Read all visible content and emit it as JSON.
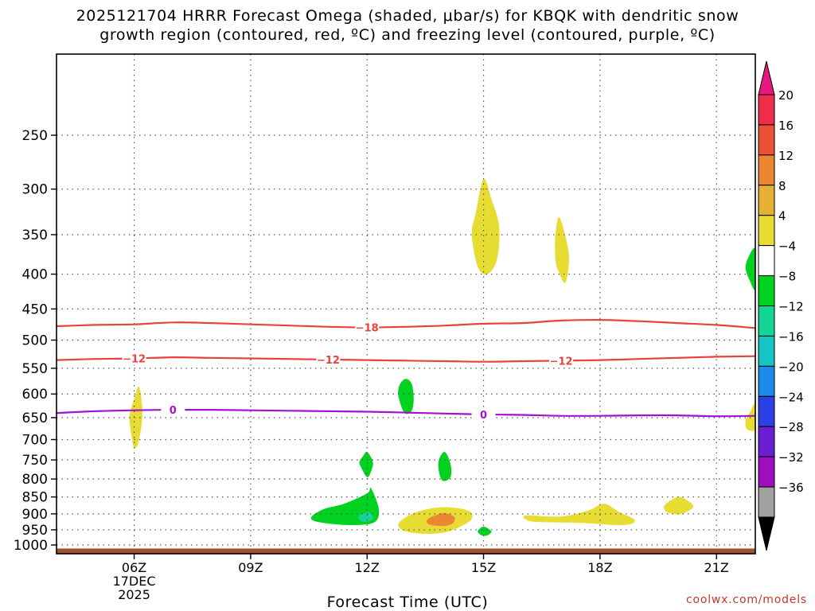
{
  "title_line1": "2025121704 HRRR Forecast Omega (shaded, μbar/s) for KBQK with dendritic snow",
  "title_line2": "growth region (contoured, red, ºC) and freezing level (contoured, purple, ºC)",
  "credit": "coolwx.com/models",
  "chart_data": {
    "type": "heatmap",
    "xlabel": "Forecast Time (UTC)",
    "x_ticks": [
      {
        "label": "06Z",
        "hour": 6,
        "sub": [
          "17DEC",
          "2025"
        ]
      },
      {
        "label": "09Z",
        "hour": 9,
        "sub": []
      },
      {
        "label": "12Z",
        "hour": 12,
        "sub": []
      },
      {
        "label": "15Z",
        "hour": 15,
        "sub": []
      },
      {
        "label": "18Z",
        "hour": 18,
        "sub": []
      },
      {
        "label": "21Z",
        "hour": 21,
        "sub": []
      }
    ],
    "xlim": [
      4,
      22
    ],
    "y_scale": "log",
    "y_reversed": true,
    "ylim": [
      1030,
      190
    ],
    "y_ticks": [
      250,
      300,
      350,
      400,
      450,
      500,
      550,
      600,
      650,
      700,
      750,
      800,
      850,
      900,
      950,
      1000
    ],
    "grid": true,
    "colorbar": {
      "levels": [
        {
          "label": "20",
          "color": "#ee2d4a"
        },
        {
          "label": "16",
          "color": "#ee5036"
        },
        {
          "label": "12",
          "color": "#eb8631"
        },
        {
          "label": "8",
          "color": "#e6b032"
        },
        {
          "label": "4",
          "color": "#e7dc32"
        },
        {
          "label": "−4",
          "color": "#ffffff"
        },
        {
          "label": "−8",
          "color": "#00d21f"
        },
        {
          "label": "−12",
          "color": "#13d696"
        },
        {
          "label": "−16",
          "color": "#16c4c4"
        },
        {
          "label": "−20",
          "color": "#1b8cee"
        },
        {
          "label": "−24",
          "color": "#2d3fe6"
        },
        {
          "label": "−28",
          "color": "#6a1fd3"
        },
        {
          "label": "−32",
          "color": "#a00fbe"
        },
        {
          "label": "−36",
          "color": "#a0a0a0"
        }
      ],
      "top_arrow_color": "#e8167f",
      "bottom_arrow_color": "#000000"
    },
    "contours": [
      {
        "label": "−18",
        "color": "#e8423a",
        "label_hours": [
          12.0
        ],
        "points": [
          [
            4,
            477
          ],
          [
            5,
            475
          ],
          [
            6,
            474
          ],
          [
            7,
            471
          ],
          [
            8,
            472
          ],
          [
            9,
            474
          ],
          [
            10,
            476
          ],
          [
            11,
            478
          ],
          [
            12,
            479
          ],
          [
            13,
            478
          ],
          [
            14,
            476
          ],
          [
            15,
            473
          ],
          [
            16,
            472
          ],
          [
            17,
            468
          ],
          [
            18,
            467
          ],
          [
            19,
            469
          ],
          [
            20,
            472
          ],
          [
            21,
            475
          ],
          [
            22,
            480
          ]
        ]
      },
      {
        "label": "−12",
        "color": "#e8423a",
        "label_hours": [
          6.0,
          11.0,
          17.0
        ],
        "points": [
          [
            4,
            535
          ],
          [
            5,
            533
          ],
          [
            6,
            532
          ],
          [
            7,
            530
          ],
          [
            8,
            531
          ],
          [
            9,
            532
          ],
          [
            10,
            533
          ],
          [
            11,
            534
          ],
          [
            12,
            535
          ],
          [
            13,
            536
          ],
          [
            14,
            537
          ],
          [
            15,
            538
          ],
          [
            16,
            537
          ],
          [
            17,
            536
          ],
          [
            18,
            535
          ],
          [
            19,
            533
          ],
          [
            20,
            531
          ],
          [
            21,
            529
          ],
          [
            22,
            528
          ]
        ]
      },
      {
        "label": "0",
        "color": "#a212cf",
        "label_hours": [
          7.0,
          15.0
        ],
        "points": [
          [
            4,
            640
          ],
          [
            5,
            636
          ],
          [
            6,
            634
          ],
          [
            7,
            633
          ],
          [
            8,
            633
          ],
          [
            9,
            634
          ],
          [
            10,
            635
          ],
          [
            11,
            636
          ],
          [
            12,
            637
          ],
          [
            13,
            639
          ],
          [
            14,
            641
          ],
          [
            15,
            643
          ],
          [
            16,
            644
          ],
          [
            17,
            646
          ],
          [
            18,
            646
          ],
          [
            19,
            645
          ],
          [
            20,
            645
          ],
          [
            21,
            647
          ],
          [
            22,
            646
          ]
        ]
      }
    ],
    "regions": [
      {
        "color": "#e7dc32",
        "points": [
          [
            5.95,
            700
          ],
          [
            5.88,
            650
          ],
          [
            6.0,
            610
          ],
          [
            6.12,
            585
          ],
          [
            6.2,
            620
          ],
          [
            6.2,
            660
          ],
          [
            6.1,
            710
          ],
          [
            6.0,
            720
          ]
        ]
      },
      {
        "color": "#e7dc32",
        "points": [
          [
            15.0,
            290
          ],
          [
            15.2,
            310
          ],
          [
            15.4,
            340
          ],
          [
            15.35,
            380
          ],
          [
            15.1,
            400
          ],
          [
            14.85,
            390
          ],
          [
            14.7,
            350
          ],
          [
            14.8,
            325
          ]
        ]
      },
      {
        "color": "#e7dc32",
        "points": [
          [
            16.95,
            330
          ],
          [
            17.15,
            360
          ],
          [
            17.2,
            385
          ],
          [
            17.1,
            412
          ],
          [
            16.92,
            395
          ],
          [
            16.85,
            380
          ],
          [
            16.85,
            350
          ]
        ]
      },
      {
        "color": "#00d21f",
        "points": [
          [
            22.0,
            368
          ],
          [
            21.82,
            378
          ],
          [
            21.75,
            392
          ],
          [
            21.85,
            408
          ],
          [
            22.0,
            420
          ]
        ]
      },
      {
        "color": "#e7dc32",
        "points": [
          [
            22.0,
            620
          ],
          [
            21.85,
            640
          ],
          [
            21.75,
            655
          ],
          [
            21.78,
            675
          ],
          [
            22.0,
            675
          ]
        ]
      },
      {
        "color": "#00d21f",
        "points": [
          [
            13.0,
            570
          ],
          [
            13.15,
            580
          ],
          [
            13.2,
            610
          ],
          [
            13.15,
            635
          ],
          [
            13.0,
            642
          ],
          [
            12.9,
            630
          ],
          [
            12.8,
            600
          ],
          [
            12.85,
            580
          ]
        ]
      },
      {
        "color": "#00d21f",
        "points": [
          [
            12.0,
            730
          ],
          [
            12.15,
            755
          ],
          [
            12.1,
            780
          ],
          [
            12.0,
            795
          ],
          [
            11.85,
            770
          ],
          [
            11.8,
            755
          ],
          [
            11.9,
            740
          ]
        ]
      },
      {
        "color": "#00d21f",
        "points": [
          [
            14.0,
            730
          ],
          [
            14.15,
            760
          ],
          [
            14.15,
            795
          ],
          [
            13.95,
            805
          ],
          [
            13.85,
            780
          ],
          [
            13.85,
            750
          ]
        ]
      },
      {
        "color": "#00d21f",
        "points": [
          [
            10.6,
            905
          ],
          [
            10.9,
            885
          ],
          [
            11.4,
            870
          ],
          [
            12.0,
            840
          ],
          [
            12.1,
            825
          ],
          [
            12.3,
            885
          ],
          [
            12.2,
            925
          ],
          [
            11.7,
            935
          ],
          [
            11.0,
            930
          ],
          [
            10.6,
            920
          ]
        ]
      },
      {
        "color": "#13d696",
        "points": [
          [
            11.8,
            905
          ],
          [
            12.05,
            895
          ],
          [
            12.15,
            915
          ],
          [
            11.95,
            925
          ],
          [
            11.8,
            918
          ]
        ]
      },
      {
        "color": "#e7dc32",
        "points": [
          [
            13.0,
            910
          ],
          [
            13.4,
            890
          ],
          [
            14.0,
            880
          ],
          [
            14.6,
            890
          ],
          [
            14.7,
            915
          ],
          [
            14.4,
            940
          ],
          [
            14.0,
            958
          ],
          [
            13.5,
            963
          ],
          [
            13.0,
            955
          ],
          [
            12.8,
            935
          ]
        ]
      },
      {
        "color": "#eb8631",
        "points": [
          [
            13.55,
            918
          ],
          [
            13.75,
            905
          ],
          [
            14.0,
            898
          ],
          [
            14.25,
            910
          ],
          [
            14.2,
            930
          ],
          [
            13.95,
            938
          ],
          [
            13.6,
            933
          ]
        ]
      },
      {
        "color": "#00d21f",
        "points": [
          [
            15.0,
            940
          ],
          [
            15.2,
            955
          ],
          [
            15.1,
            968
          ],
          [
            14.95,
            968
          ],
          [
            14.85,
            955
          ]
        ]
      },
      {
        "color": "#e7dc32",
        "points": [
          [
            16.1,
            905
          ],
          [
            17.0,
            908
          ],
          [
            17.7,
            890
          ],
          [
            18.1,
            870
          ],
          [
            18.5,
            895
          ],
          [
            18.9,
            920
          ],
          [
            18.6,
            935
          ],
          [
            17.5,
            928
          ],
          [
            16.4,
            925
          ],
          [
            16.1,
            918
          ]
        ]
      },
      {
        "color": "#e7dc32",
        "points": [
          [
            19.7,
            870
          ],
          [
            20.0,
            850
          ],
          [
            20.25,
            860
          ],
          [
            20.4,
            880
          ],
          [
            20.1,
            900
          ],
          [
            19.8,
            898
          ],
          [
            19.65,
            885
          ]
        ]
      }
    ],
    "ground": {
      "color": "#a0522d",
      "from_pressure": 1012
    }
  }
}
